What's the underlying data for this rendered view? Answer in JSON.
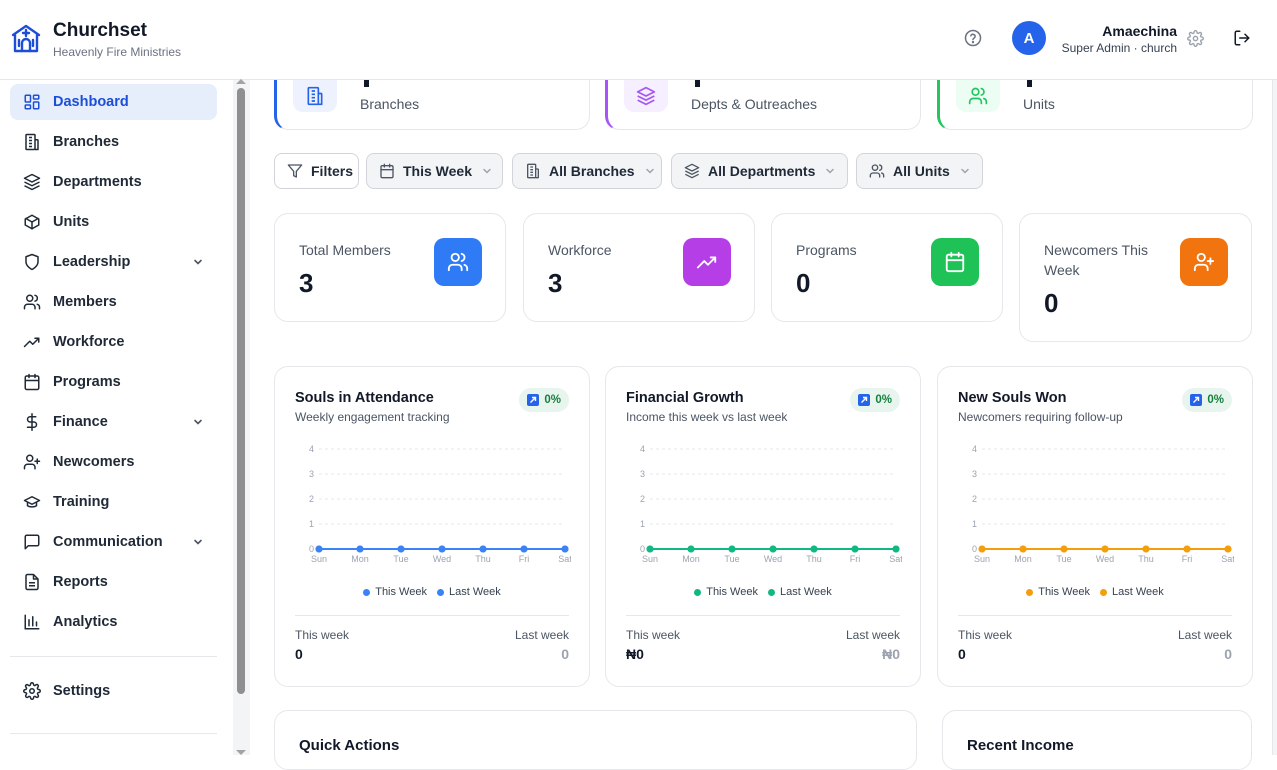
{
  "header": {
    "brand": "Churchset",
    "subtitle": "Heavenly Fire Ministries",
    "user_initial": "A",
    "user_name": "Amaechina",
    "user_role": "Super Admin · church"
  },
  "sidebar": {
    "items": [
      {
        "label": "Dashboard",
        "icon": "dashboard-icon",
        "active": true
      },
      {
        "label": "Branches",
        "icon": "building-icon"
      },
      {
        "label": "Departments",
        "icon": "layers-icon"
      },
      {
        "label": "Units",
        "icon": "box-icon"
      },
      {
        "label": "Leadership",
        "icon": "shield-icon",
        "expandable": true
      },
      {
        "label": "Members",
        "icon": "users-icon"
      },
      {
        "label": "Workforce",
        "icon": "trending-up-icon"
      },
      {
        "label": "Programs",
        "icon": "calendar-icon"
      },
      {
        "label": "Finance",
        "icon": "dollar-icon",
        "expandable": true
      },
      {
        "label": "Newcomers",
        "icon": "user-plus-icon"
      },
      {
        "label": "Training",
        "icon": "graduation-cap-icon"
      },
      {
        "label": "Communication",
        "icon": "message-icon",
        "expandable": true
      },
      {
        "label": "Reports",
        "icon": "file-text-icon"
      },
      {
        "label": "Analytics",
        "icon": "bar-chart-icon"
      }
    ],
    "settings_label": "Settings"
  },
  "top_cards": [
    {
      "label": "Branches",
      "color": "#2563eb"
    },
    {
      "label": "Depts & Outreaches",
      "color": "#a855f7"
    },
    {
      "label": "Units",
      "color": "#22c55e"
    }
  ],
  "filters": {
    "filters_label": "Filters",
    "period": "This Week",
    "branch": "All Branches",
    "department": "All Departments",
    "unit": "All Units"
  },
  "stats": [
    {
      "label": "Total Members",
      "value": "3",
      "color": "#2f7bf5",
      "icon": "users-icon"
    },
    {
      "label": "Workforce",
      "value": "3",
      "color": "#b63ee6",
      "icon": "trending-up-icon"
    },
    {
      "label": "Programs",
      "value": "0",
      "color": "#1fc256",
      "icon": "calendar-icon"
    },
    {
      "label": "Newcomers This Week",
      "value": "0",
      "color": "#f2740f",
      "icon": "user-plus-icon"
    }
  ],
  "charts": [
    {
      "title": "Souls in Attendance",
      "subtitle": "Weekly engagement tracking",
      "badge": "0%",
      "color": "#3b82f6",
      "legend": [
        "This Week",
        "Last Week"
      ],
      "this_week_label": "This week",
      "last_week_label": "Last week",
      "this_week_value": "0",
      "last_week_value": "0"
    },
    {
      "title": "Financial Growth",
      "subtitle": "Income this week vs last week",
      "badge": "0%",
      "color": "#10b981",
      "legend": [
        "This Week",
        "Last Week"
      ],
      "this_week_label": "This week",
      "last_week_label": "Last week",
      "this_week_value": "₦0",
      "last_week_value": "₦0"
    },
    {
      "title": "New Souls Won",
      "subtitle": "Newcomers requiring follow-up",
      "badge": "0%",
      "color": "#f59e0b",
      "legend": [
        "This Week",
        "Last Week"
      ],
      "this_week_label": "This week",
      "last_week_label": "Last week",
      "this_week_value": "0",
      "last_week_value": "0"
    }
  ],
  "chart_data": [
    {
      "type": "line",
      "x": [
        "Sun",
        "Mon",
        "Tue",
        "Wed",
        "Thu",
        "Fri",
        "Sat"
      ],
      "series": [
        {
          "name": "This Week",
          "values": [
            0,
            0,
            0,
            0,
            0,
            0,
            0
          ]
        },
        {
          "name": "Last Week",
          "values": [
            0,
            0,
            0,
            0,
            0,
            0,
            0
          ]
        }
      ],
      "ylim": [
        0,
        4
      ],
      "yticks": [
        0,
        1,
        2,
        3,
        4
      ],
      "title": "Souls in Attendance"
    },
    {
      "type": "line",
      "x": [
        "Sun",
        "Mon",
        "Tue",
        "Wed",
        "Thu",
        "Fri",
        "Sat"
      ],
      "series": [
        {
          "name": "This Week",
          "values": [
            0,
            0,
            0,
            0,
            0,
            0,
            0
          ]
        },
        {
          "name": "Last Week",
          "values": [
            0,
            0,
            0,
            0,
            0,
            0,
            0
          ]
        }
      ],
      "ylim": [
        0,
        4
      ],
      "yticks": [
        0,
        1,
        2,
        3,
        4
      ],
      "title": "Financial Growth"
    },
    {
      "type": "line",
      "x": [
        "Sun",
        "Mon",
        "Tue",
        "Wed",
        "Thu",
        "Fri",
        "Sat"
      ],
      "series": [
        {
          "name": "This Week",
          "values": [
            0,
            0,
            0,
            0,
            0,
            0,
            0
          ]
        },
        {
          "name": "Last Week",
          "values": [
            0,
            0,
            0,
            0,
            0,
            0,
            0
          ]
        }
      ],
      "ylim": [
        0,
        4
      ],
      "yticks": [
        0,
        1,
        2,
        3,
        4
      ],
      "title": "New Souls Won"
    }
  ],
  "bottom": {
    "quick_actions": "Quick Actions",
    "recent_income": "Recent Income"
  }
}
